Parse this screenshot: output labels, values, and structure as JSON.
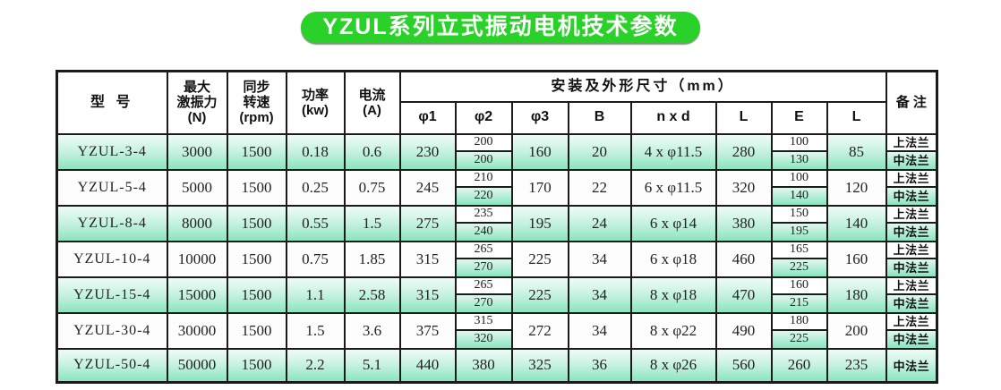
{
  "title": "YZUL系列立式振动电机技术参数",
  "colors": {
    "title_green": "#29d129",
    "mint_light": "#eefcf5",
    "mint_mid": "#c9f3e2",
    "mint_deep": "#8ce4c0",
    "white_row": "#fcfdfc",
    "border": "#1b1b1b"
  },
  "table": {
    "header": {
      "model": "型 号",
      "force": "最大\n激振力\n(N)",
      "speed": "同步\n转速\n(rpm)",
      "power": "功率\n(kw)",
      "current": "电流\n(A)",
      "dims": "安装及外形尺寸（mm）",
      "sub": [
        "φ1",
        "φ2",
        "φ3",
        "B",
        "n x d",
        "L",
        "E",
        "L"
      ],
      "remark": "备 注"
    },
    "rows": [
      {
        "model": "YZUL-3-4",
        "force": "3000",
        "speed": "1500",
        "power": "0.18",
        "current": "0.6",
        "phi1": "230",
        "phi2": [
          "200",
          "200"
        ],
        "phi3": "160",
        "b": "20",
        "nxd": "4 x φ11.5",
        "l1": "280",
        "e": [
          "100",
          "130"
        ],
        "l2": "85",
        "remark": [
          "上法兰",
          "中法兰"
        ]
      },
      {
        "model": "YZUL-5-4",
        "force": "5000",
        "speed": "1500",
        "power": "0.25",
        "current": "0.75",
        "phi1": "245",
        "phi2": [
          "210",
          "220"
        ],
        "phi3": "170",
        "b": "22",
        "nxd": "6 x φ11.5",
        "l1": "320",
        "e": [
          "100",
          "140"
        ],
        "l2": "120",
        "remark": [
          "上法兰",
          "中法兰"
        ]
      },
      {
        "model": "YZUL-8-4",
        "force": "8000",
        "speed": "1500",
        "power": "0.55",
        "current": "1.5",
        "phi1": "275",
        "phi2": [
          "235",
          "240"
        ],
        "phi3": "195",
        "b": "24",
        "nxd": "6 x φ14",
        "l1": "380",
        "e": [
          "150",
          "195"
        ],
        "l2": "140",
        "remark": [
          "上法兰",
          "中法兰"
        ]
      },
      {
        "model": "YZUL-10-4",
        "force": "10000",
        "speed": "1500",
        "power": "0.75",
        "current": "1.85",
        "phi1": "315",
        "phi2": [
          "265",
          "270"
        ],
        "phi3": "225",
        "b": "34",
        "nxd": "6 x φ18",
        "l1": "460",
        "e": [
          "165",
          "225"
        ],
        "l2": "160",
        "remark": [
          "上法兰",
          "中法兰"
        ]
      },
      {
        "model": "YZUL-15-4",
        "force": "15000",
        "speed": "1500",
        "power": "1.1",
        "current": "2.58",
        "phi1": "315",
        "phi2": [
          "265",
          "270"
        ],
        "phi3": "225",
        "b": "34",
        "nxd": "8 x φ18",
        "l1": "470",
        "e": [
          "160",
          "215"
        ],
        "l2": "180",
        "remark": [
          "上法兰",
          "中法兰"
        ]
      },
      {
        "model": "YZUL-30-4",
        "force": "30000",
        "speed": "1500",
        "power": "1.5",
        "current": "3.6",
        "phi1": "375",
        "phi2": [
          "315",
          "320"
        ],
        "phi3": "272",
        "b": "34",
        "nxd": "8 x φ22",
        "l1": "490",
        "e": [
          "180",
          "225"
        ],
        "l2": "200",
        "remark": [
          "上法兰",
          "中法兰"
        ]
      },
      {
        "model": "YZUL-50-4",
        "force": "50000",
        "speed": "1500",
        "power": "2.2",
        "current": "5.1",
        "phi1": "440",
        "phi2": "380",
        "phi3": "325",
        "b": "36",
        "nxd": "8 x φ26",
        "l1": "560",
        "e": "260",
        "l2": "235",
        "remark": "中法兰"
      }
    ]
  }
}
